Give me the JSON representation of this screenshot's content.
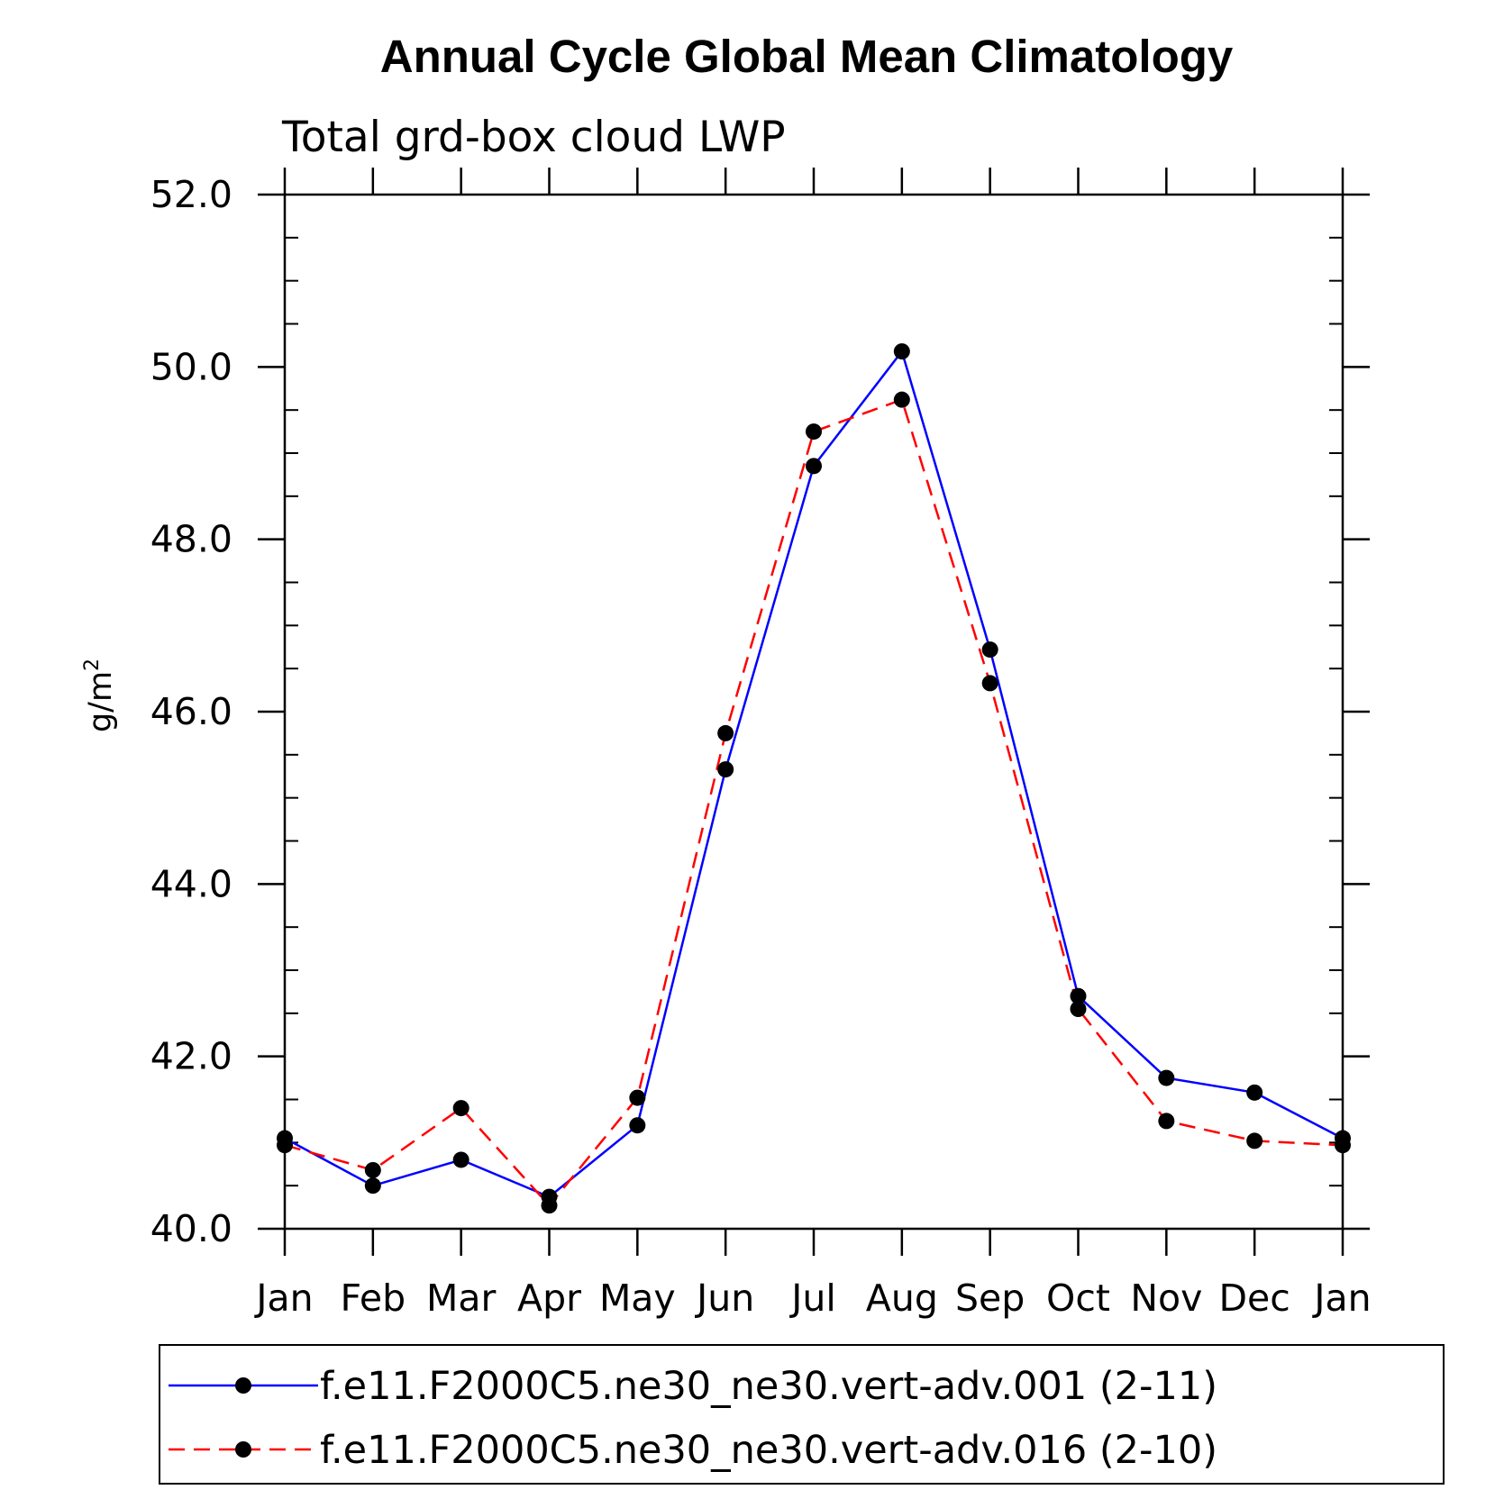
{
  "chart_data": {
    "type": "line",
    "title": "Annual Cycle Global Mean Climatology",
    "subtitle": "Total grd-box cloud LWP",
    "xlabel": "",
    "ylabel": "g/m",
    "ylabel_superscript": "2",
    "categories": [
      "Jan",
      "Feb",
      "Mar",
      "Apr",
      "May",
      "Jun",
      "Jul",
      "Aug",
      "Sep",
      "Oct",
      "Nov",
      "Dec",
      "Jan"
    ],
    "ylim": [
      40.0,
      52.0
    ],
    "yticks": [
      "40.0",
      "42.0",
      "44.0",
      "46.0",
      "48.0",
      "50.0",
      "52.0"
    ],
    "grid": false,
    "legend_position": "bottom",
    "series": [
      {
        "name": "f.e11.F2000C5.ne30_ne30.vert-adv.001 (2-11)",
        "color": "#0000ff",
        "line_style": "solid",
        "marker": "filled-circle",
        "values": [
          41.05,
          40.5,
          40.8,
          40.37,
          41.2,
          45.33,
          48.85,
          50.18,
          46.72,
          42.7,
          41.75,
          41.58,
          41.05
        ]
      },
      {
        "name": "f.e11.F2000C5.ne30_ne30.vert-adv.016 (2-10)",
        "color": "#ff0000",
        "line_style": "dashed",
        "marker": "filled-circle",
        "values": [
          40.97,
          40.68,
          41.4,
          40.27,
          41.52,
          45.75,
          49.25,
          49.62,
          46.33,
          42.55,
          41.25,
          41.02,
          40.97
        ]
      }
    ]
  }
}
